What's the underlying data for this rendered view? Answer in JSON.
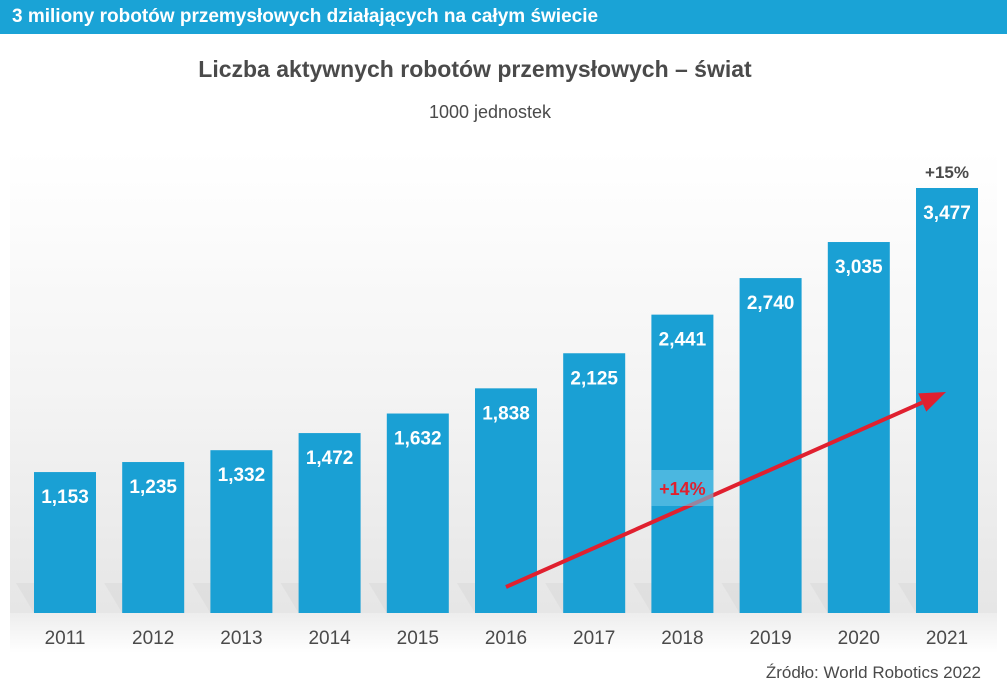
{
  "banner": "3 miliony robotów przemysłowych działających na całym świecie",
  "source": "Źródło: World Robotics 2022",
  "colors": {
    "bar": "#1aa0d4",
    "banner": "#1aa3d6",
    "arrow": "#e0202f",
    "text": "#4a4a4a"
  },
  "chart_data": {
    "type": "bar",
    "title": "Liczba aktywnych robotów przemysłowych – świat",
    "subtitle": "1000 jednostek",
    "categories": [
      "2011",
      "2012",
      "2013",
      "2014",
      "2015",
      "2016",
      "2017",
      "2018",
      "2019",
      "2020",
      "2021"
    ],
    "values": [
      1153,
      1235,
      1332,
      1472,
      1632,
      1838,
      2125,
      2441,
      2740,
      3035,
      3477
    ],
    "value_labels": [
      "1,153",
      "1,235",
      "1,332",
      "1,472",
      "1,632",
      "1,838",
      "2,125",
      "2,441",
      "2,740",
      "3,035",
      "3,477"
    ],
    "annotations": [
      {
        "text": "+15%",
        "position": "above last bar"
      },
      {
        "text": "+14%",
        "position": "arrow from 2016 to 2021"
      }
    ],
    "ylim": [
      0,
      3477
    ],
    "grid": false,
    "legend": "none"
  }
}
